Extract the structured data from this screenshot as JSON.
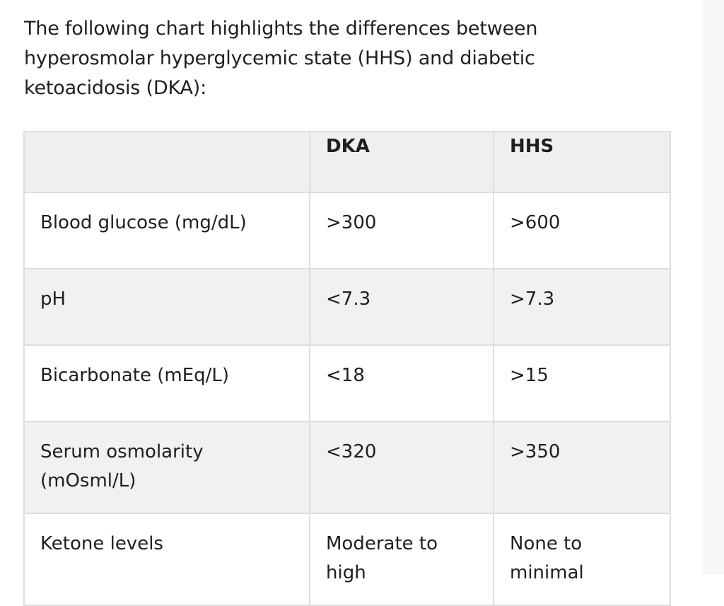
{
  "intro": "The following chart highlights the differences between hyperosmolar hyperglycemic state (HHS) and diabetic ketoacidosis (DKA):",
  "table": {
    "headers": [
      "",
      "DKA",
      "HHS"
    ],
    "rows": [
      [
        "Blood glucose (mg/dL)",
        ">300",
        ">600"
      ],
      [
        "pH",
        "<7.3",
        ">7.3"
      ],
      [
        "Bicarbonate (mEq/L)",
        "<18",
        ">15"
      ],
      [
        "Serum osmolarity (mOsml/L)",
        "<320",
        ">350"
      ],
      [
        "Ketone levels",
        "Moderate to high",
        "None to minimal"
      ]
    ]
  }
}
